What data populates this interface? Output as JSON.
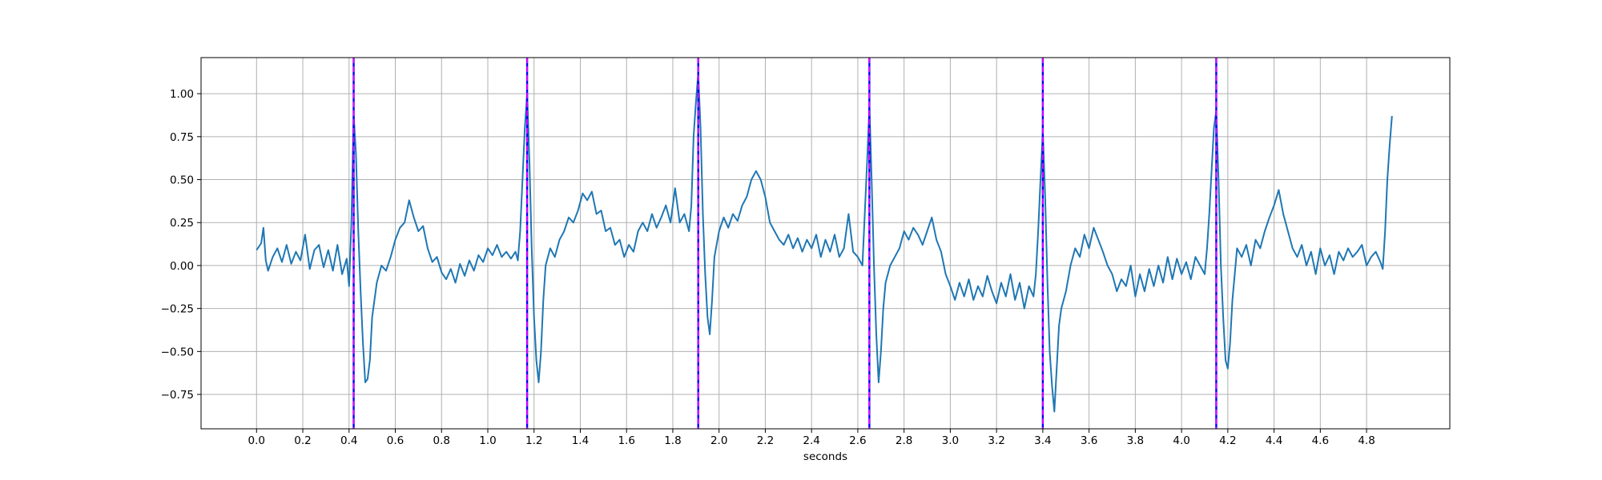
{
  "chart_data": {
    "type": "line",
    "title": "",
    "xlabel": "seconds",
    "ylabel": "",
    "xlim": [
      -0.24,
      5.16
    ],
    "ylim": [
      -0.95,
      1.21
    ],
    "grid": true,
    "legend": "none",
    "x_ticks": [
      0.0,
      0.2,
      0.4,
      0.6,
      0.8,
      1.0,
      1.2,
      1.4,
      1.6,
      1.8,
      2.0,
      2.2,
      2.4,
      2.6,
      2.8,
      3.0,
      3.2,
      3.4,
      3.6,
      3.8,
      4.0,
      4.2,
      4.4,
      4.6,
      4.8
    ],
    "x_tick_labels": [
      "0.0",
      "0.2",
      "0.4",
      "0.6",
      "0.8",
      "1.0",
      "1.2",
      "1.4",
      "1.6",
      "1.8",
      "2.0",
      "2.2",
      "2.4",
      "2.6",
      "2.8",
      "3.0",
      "3.2",
      "3.4",
      "3.6",
      "3.8",
      "4.0",
      "4.2",
      "4.4",
      "4.6",
      "4.8"
    ],
    "y_ticks": [
      -0.75,
      -0.5,
      -0.25,
      0.0,
      0.25,
      0.5,
      0.75,
      1.0
    ],
    "y_tick_labels": [
      "−0.75",
      "−0.50",
      "−0.25",
      "0.00",
      "0.25",
      "0.50",
      "0.75",
      "1.00"
    ],
    "colors": {
      "signal": "#1f77b4",
      "marker_outer": "#0000ff",
      "marker_inner": "#ff00ff",
      "grid": "#b0b0b0"
    },
    "vertical_markers": [
      0.42,
      1.17,
      1.91,
      2.65,
      3.4,
      4.15
    ],
    "series": [
      {
        "points": [
          [
            0.0,
            0.09
          ],
          [
            0.02,
            0.13
          ],
          [
            0.03,
            0.22
          ],
          [
            0.04,
            0.03
          ],
          [
            0.05,
            -0.03
          ],
          [
            0.07,
            0.05
          ],
          [
            0.09,
            0.1
          ],
          [
            0.11,
            0.02
          ],
          [
            0.13,
            0.12
          ],
          [
            0.15,
            0.01
          ],
          [
            0.17,
            0.08
          ],
          [
            0.19,
            0.03
          ],
          [
            0.21,
            0.18
          ],
          [
            0.23,
            -0.02
          ],
          [
            0.25,
            0.09
          ],
          [
            0.27,
            0.12
          ],
          [
            0.29,
            -0.01
          ],
          [
            0.31,
            0.09
          ],
          [
            0.33,
            -0.03
          ],
          [
            0.35,
            0.12
          ],
          [
            0.37,
            -0.05
          ],
          [
            0.39,
            0.04
          ],
          [
            0.4,
            -0.12
          ],
          [
            0.41,
            0.25
          ],
          [
            0.42,
            0.88
          ],
          [
            0.43,
            0.65
          ],
          [
            0.44,
            0.2
          ],
          [
            0.45,
            -0.15
          ],
          [
            0.46,
            -0.45
          ],
          [
            0.47,
            -0.68
          ],
          [
            0.48,
            -0.66
          ],
          [
            0.49,
            -0.55
          ],
          [
            0.5,
            -0.3
          ],
          [
            0.52,
            -0.1
          ],
          [
            0.54,
            0.0
          ],
          [
            0.56,
            -0.03
          ],
          [
            0.58,
            0.05
          ],
          [
            0.6,
            0.15
          ],
          [
            0.62,
            0.22
          ],
          [
            0.64,
            0.25
          ],
          [
            0.66,
            0.38
          ],
          [
            0.68,
            0.28
          ],
          [
            0.7,
            0.2
          ],
          [
            0.72,
            0.23
          ],
          [
            0.74,
            0.1
          ],
          [
            0.76,
            0.02
          ],
          [
            0.78,
            0.05
          ],
          [
            0.8,
            -0.04
          ],
          [
            0.82,
            -0.08
          ],
          [
            0.84,
            -0.02
          ],
          [
            0.86,
            -0.1
          ],
          [
            0.88,
            0.01
          ],
          [
            0.9,
            -0.06
          ],
          [
            0.92,
            0.03
          ],
          [
            0.94,
            -0.03
          ],
          [
            0.96,
            0.06
          ],
          [
            0.98,
            0.02
          ],
          [
            1.0,
            0.1
          ],
          [
            1.02,
            0.06
          ],
          [
            1.04,
            0.12
          ],
          [
            1.06,
            0.05
          ],
          [
            1.08,
            0.08
          ],
          [
            1.1,
            0.04
          ],
          [
            1.12,
            0.08
          ],
          [
            1.13,
            0.03
          ],
          [
            1.14,
            0.2
          ],
          [
            1.15,
            0.5
          ],
          [
            1.16,
            0.8
          ],
          [
            1.17,
            1.0
          ],
          [
            1.18,
            0.6
          ],
          [
            1.19,
            0.1
          ],
          [
            1.2,
            -0.3
          ],
          [
            1.21,
            -0.55
          ],
          [
            1.22,
            -0.68
          ],
          [
            1.23,
            -0.5
          ],
          [
            1.24,
            -0.2
          ],
          [
            1.25,
            0.0
          ],
          [
            1.27,
            0.1
          ],
          [
            1.29,
            0.05
          ],
          [
            1.31,
            0.15
          ],
          [
            1.33,
            0.2
          ],
          [
            1.35,
            0.28
          ],
          [
            1.37,
            0.25
          ],
          [
            1.39,
            0.32
          ],
          [
            1.41,
            0.42
          ],
          [
            1.43,
            0.38
          ],
          [
            1.45,
            0.43
          ],
          [
            1.47,
            0.3
          ],
          [
            1.49,
            0.32
          ],
          [
            1.51,
            0.2
          ],
          [
            1.53,
            0.22
          ],
          [
            1.55,
            0.12
          ],
          [
            1.57,
            0.15
          ],
          [
            1.59,
            0.05
          ],
          [
            1.61,
            0.12
          ],
          [
            1.63,
            0.08
          ],
          [
            1.65,
            0.2
          ],
          [
            1.67,
            0.25
          ],
          [
            1.69,
            0.2
          ],
          [
            1.71,
            0.3
          ],
          [
            1.73,
            0.22
          ],
          [
            1.75,
            0.28
          ],
          [
            1.77,
            0.35
          ],
          [
            1.79,
            0.25
          ],
          [
            1.81,
            0.45
          ],
          [
            1.83,
            0.25
          ],
          [
            1.85,
            0.3
          ],
          [
            1.87,
            0.2
          ],
          [
            1.88,
            0.35
          ],
          [
            1.89,
            0.75
          ],
          [
            1.9,
            0.95
          ],
          [
            1.91,
            1.12
          ],
          [
            1.92,
            0.8
          ],
          [
            1.93,
            0.3
          ],
          [
            1.94,
            -0.05
          ],
          [
            1.95,
            -0.3
          ],
          [
            1.96,
            -0.4
          ],
          [
            1.97,
            -0.2
          ],
          [
            1.98,
            0.05
          ],
          [
            2.0,
            0.2
          ],
          [
            2.02,
            0.28
          ],
          [
            2.04,
            0.22
          ],
          [
            2.06,
            0.3
          ],
          [
            2.08,
            0.26
          ],
          [
            2.1,
            0.35
          ],
          [
            2.12,
            0.4
          ],
          [
            2.14,
            0.5
          ],
          [
            2.16,
            0.55
          ],
          [
            2.18,
            0.5
          ],
          [
            2.2,
            0.4
          ],
          [
            2.22,
            0.25
          ],
          [
            2.24,
            0.2
          ],
          [
            2.26,
            0.15
          ],
          [
            2.28,
            0.12
          ],
          [
            2.3,
            0.18
          ],
          [
            2.32,
            0.1
          ],
          [
            2.34,
            0.16
          ],
          [
            2.36,
            0.08
          ],
          [
            2.38,
            0.15
          ],
          [
            2.4,
            0.1
          ],
          [
            2.42,
            0.18
          ],
          [
            2.44,
            0.05
          ],
          [
            2.46,
            0.15
          ],
          [
            2.48,
            0.08
          ],
          [
            2.5,
            0.18
          ],
          [
            2.52,
            0.05
          ],
          [
            2.54,
            0.1
          ],
          [
            2.56,
            0.3
          ],
          [
            2.58,
            0.08
          ],
          [
            2.6,
            0.05
          ],
          [
            2.62,
            0.0
          ],
          [
            2.63,
            0.3
          ],
          [
            2.64,
            0.6
          ],
          [
            2.65,
            0.93
          ],
          [
            2.66,
            0.5
          ],
          [
            2.67,
            0.0
          ],
          [
            2.68,
            -0.4
          ],
          [
            2.69,
            -0.68
          ],
          [
            2.7,
            -0.5
          ],
          [
            2.71,
            -0.25
          ],
          [
            2.72,
            -0.1
          ],
          [
            2.74,
            0.0
          ],
          [
            2.76,
            0.05
          ],
          [
            2.78,
            0.1
          ],
          [
            2.8,
            0.2
          ],
          [
            2.82,
            0.15
          ],
          [
            2.84,
            0.22
          ],
          [
            2.86,
            0.18
          ],
          [
            2.88,
            0.12
          ],
          [
            2.9,
            0.2
          ],
          [
            2.92,
            0.28
          ],
          [
            2.94,
            0.15
          ],
          [
            2.96,
            0.08
          ],
          [
            2.98,
            -0.05
          ],
          [
            3.0,
            -0.12
          ],
          [
            3.02,
            -0.2
          ],
          [
            3.04,
            -0.1
          ],
          [
            3.06,
            -0.18
          ],
          [
            3.08,
            -0.08
          ],
          [
            3.1,
            -0.2
          ],
          [
            3.12,
            -0.12
          ],
          [
            3.14,
            -0.18
          ],
          [
            3.16,
            -0.06
          ],
          [
            3.18,
            -0.15
          ],
          [
            3.2,
            -0.22
          ],
          [
            3.22,
            -0.1
          ],
          [
            3.24,
            -0.18
          ],
          [
            3.26,
            -0.05
          ],
          [
            3.28,
            -0.2
          ],
          [
            3.3,
            -0.1
          ],
          [
            3.32,
            -0.25
          ],
          [
            3.34,
            -0.12
          ],
          [
            3.36,
            -0.18
          ],
          [
            3.37,
            -0.05
          ],
          [
            3.38,
            0.2
          ],
          [
            3.39,
            0.5
          ],
          [
            3.4,
            0.78
          ],
          [
            3.41,
            0.4
          ],
          [
            3.42,
            -0.1
          ],
          [
            3.43,
            -0.5
          ],
          [
            3.44,
            -0.7
          ],
          [
            3.45,
            -0.85
          ],
          [
            3.46,
            -0.6
          ],
          [
            3.47,
            -0.35
          ],
          [
            3.48,
            -0.25
          ],
          [
            3.5,
            -0.15
          ],
          [
            3.52,
            0.0
          ],
          [
            3.54,
            0.1
          ],
          [
            3.56,
            0.05
          ],
          [
            3.58,
            0.18
          ],
          [
            3.6,
            0.1
          ],
          [
            3.62,
            0.22
          ],
          [
            3.64,
            0.15
          ],
          [
            3.66,
            0.08
          ],
          [
            3.68,
            0.0
          ],
          [
            3.7,
            -0.05
          ],
          [
            3.72,
            -0.15
          ],
          [
            3.74,
            -0.08
          ],
          [
            3.76,
            -0.12
          ],
          [
            3.78,
            0.0
          ],
          [
            3.8,
            -0.18
          ],
          [
            3.82,
            -0.05
          ],
          [
            3.84,
            -0.15
          ],
          [
            3.86,
            -0.02
          ],
          [
            3.88,
            -0.12
          ],
          [
            3.9,
            0.0
          ],
          [
            3.92,
            -0.1
          ],
          [
            3.94,
            0.05
          ],
          [
            3.96,
            -0.08
          ],
          [
            3.98,
            0.04
          ],
          [
            4.0,
            -0.05
          ],
          [
            4.02,
            0.02
          ],
          [
            4.04,
            -0.08
          ],
          [
            4.06,
            0.05
          ],
          [
            4.08,
            0.0
          ],
          [
            4.1,
            -0.05
          ],
          [
            4.11,
            0.1
          ],
          [
            4.12,
            0.3
          ],
          [
            4.13,
            0.55
          ],
          [
            4.14,
            0.8
          ],
          [
            4.15,
            0.9
          ],
          [
            4.16,
            0.5
          ],
          [
            4.17,
            0.0
          ],
          [
            4.18,
            -0.3
          ],
          [
            4.19,
            -0.55
          ],
          [
            4.2,
            -0.6
          ],
          [
            4.21,
            -0.45
          ],
          [
            4.22,
            -0.2
          ],
          [
            4.24,
            0.1
          ],
          [
            4.26,
            0.05
          ],
          [
            4.28,
            0.12
          ],
          [
            4.3,
            0.0
          ],
          [
            4.32,
            0.15
          ],
          [
            4.34,
            0.1
          ],
          [
            4.36,
            0.2
          ],
          [
            4.38,
            0.28
          ],
          [
            4.4,
            0.35
          ],
          [
            4.42,
            0.44
          ],
          [
            4.44,
            0.3
          ],
          [
            4.46,
            0.2
          ],
          [
            4.48,
            0.1
          ],
          [
            4.5,
            0.05
          ],
          [
            4.52,
            0.12
          ],
          [
            4.54,
            0.0
          ],
          [
            4.56,
            0.08
          ],
          [
            4.58,
            -0.05
          ],
          [
            4.6,
            0.1
          ],
          [
            4.62,
            0.0
          ],
          [
            4.64,
            0.06
          ],
          [
            4.66,
            -0.05
          ],
          [
            4.68,
            0.08
          ],
          [
            4.7,
            0.03
          ],
          [
            4.72,
            0.1
          ],
          [
            4.74,
            0.05
          ],
          [
            4.76,
            0.08
          ],
          [
            4.78,
            0.12
          ],
          [
            4.8,
            0.0
          ],
          [
            4.82,
            0.05
          ],
          [
            4.84,
            0.08
          ],
          [
            4.86,
            0.02
          ],
          [
            4.87,
            -0.02
          ],
          [
            4.88,
            0.2
          ],
          [
            4.89,
            0.5
          ],
          [
            4.9,
            0.7
          ],
          [
            4.91,
            0.87
          ]
        ]
      }
    ]
  }
}
